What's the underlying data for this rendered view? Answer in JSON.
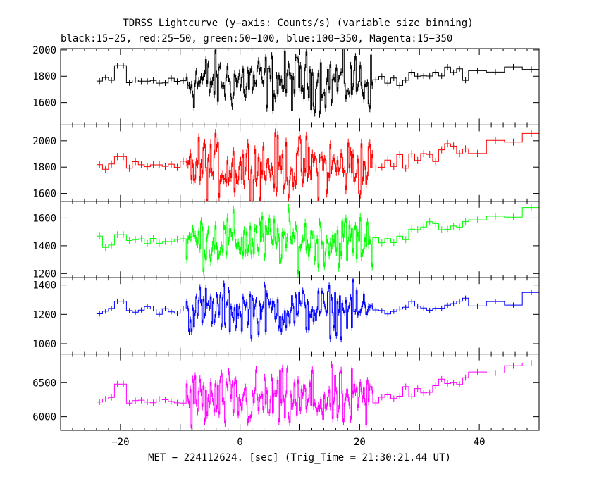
{
  "title": "TDRSS Lightcurve (y−axis: Counts/s) (variable size binning)",
  "subtitle": "black:15−25, red:25−50, green:50−100, blue:100−350, Magenta:15−350",
  "xlabel": "MET − 224112624. [sec] (Trig_Time = 21:30:21.44 UT)",
  "chart_data": {
    "type": "line",
    "title": "TDRSS Lightcurve (y-axis: Counts/s) (variable size binning)",
    "xlabel": "MET - 224112624. [sec] (Trig_Time = 21:30:21.44 UT)",
    "xlim": [
      -30,
      50
    ],
    "x_ticks": [
      -20,
      0,
      20,
      40
    ],
    "panels": [
      {
        "name": "15-25",
        "color": "#000000",
        "ylim": [
          1430,
          2010
        ],
        "yticks": [
          1600,
          1800,
          2000
        ],
        "base": 1760,
        "prestep": 1880,
        "noise": 160,
        "noise2": 45,
        "tailEnd": 1880
      },
      {
        "name": "25-50",
        "color": "#ff0000",
        "ylim": [
          1540,
          2120
        ],
        "yticks": [
          1600,
          1800,
          2000
        ],
        "base": 1800,
        "prestep": 1880,
        "noise": 170,
        "noise2": 55,
        "tailEnd": 2050
      },
      {
        "name": "50-100",
        "color": "#00ff00",
        "ylim": [
          1170,
          1720
        ],
        "yticks": [
          1200,
          1400,
          1600
        ],
        "base": 1440,
        "prestep": 1480,
        "noise": 140,
        "noise2": 50,
        "tailEnd": 1650
      },
      {
        "name": "100-350",
        "color": "#0000ff",
        "ylim": [
          930,
          1450
        ],
        "yticks": [
          1000,
          1200,
          1400
        ],
        "base": 1230,
        "prestep": 1290,
        "noise": 120,
        "noise2": 35,
        "tailEnd": 1310
      },
      {
        "name": "15-350",
        "color": "#ff00ff",
        "ylim": [
          5800,
          6920
        ],
        "yticks": [
          6000,
          6500
        ],
        "base": 6230,
        "prestep": 6480,
        "noise": 320,
        "noise2": 90,
        "tailEnd": 6870
      }
    ]
  }
}
